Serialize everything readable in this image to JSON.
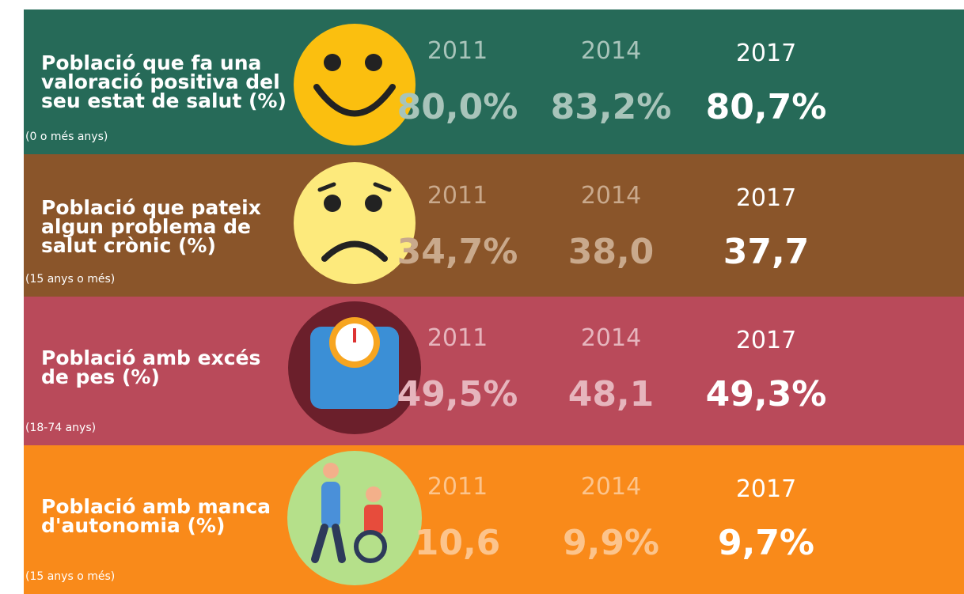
{
  "rows": [
    {
      "title": [
        "Població que fa una",
        "valoració positiva del",
        "seu estat de salut (%)"
      ],
      "note": "(0 o més anys)",
      "years": [
        "2011",
        "2014",
        "2017"
      ],
      "values": [
        "80,0%",
        "83,2%",
        "80,7%"
      ]
    },
    {
      "title": [
        "Població que pateix",
        "algun problema de",
        "salut crònic (%)"
      ],
      "note": "(15 anys o més)",
      "years": [
        "2011",
        "2014",
        "2017"
      ],
      "values": [
        "34,7%",
        "38,0",
        "37,7"
      ]
    },
    {
      "title": [
        "Població amb excés",
        "de pes (%)"
      ],
      "note": "(18-74 anys)",
      "years": [
        "2011",
        "2014",
        "2017"
      ],
      "values": [
        "49,5%",
        "48,1",
        "49,3%"
      ]
    },
    {
      "title": [
        "Població amb manca",
        "d'autonomia (%)"
      ],
      "note": "(15 anys o més)",
      "years": [
        "2011",
        "2014",
        "2017"
      ],
      "values": [
        "10,6",
        "9,9%",
        "9,7%"
      ]
    }
  ]
}
